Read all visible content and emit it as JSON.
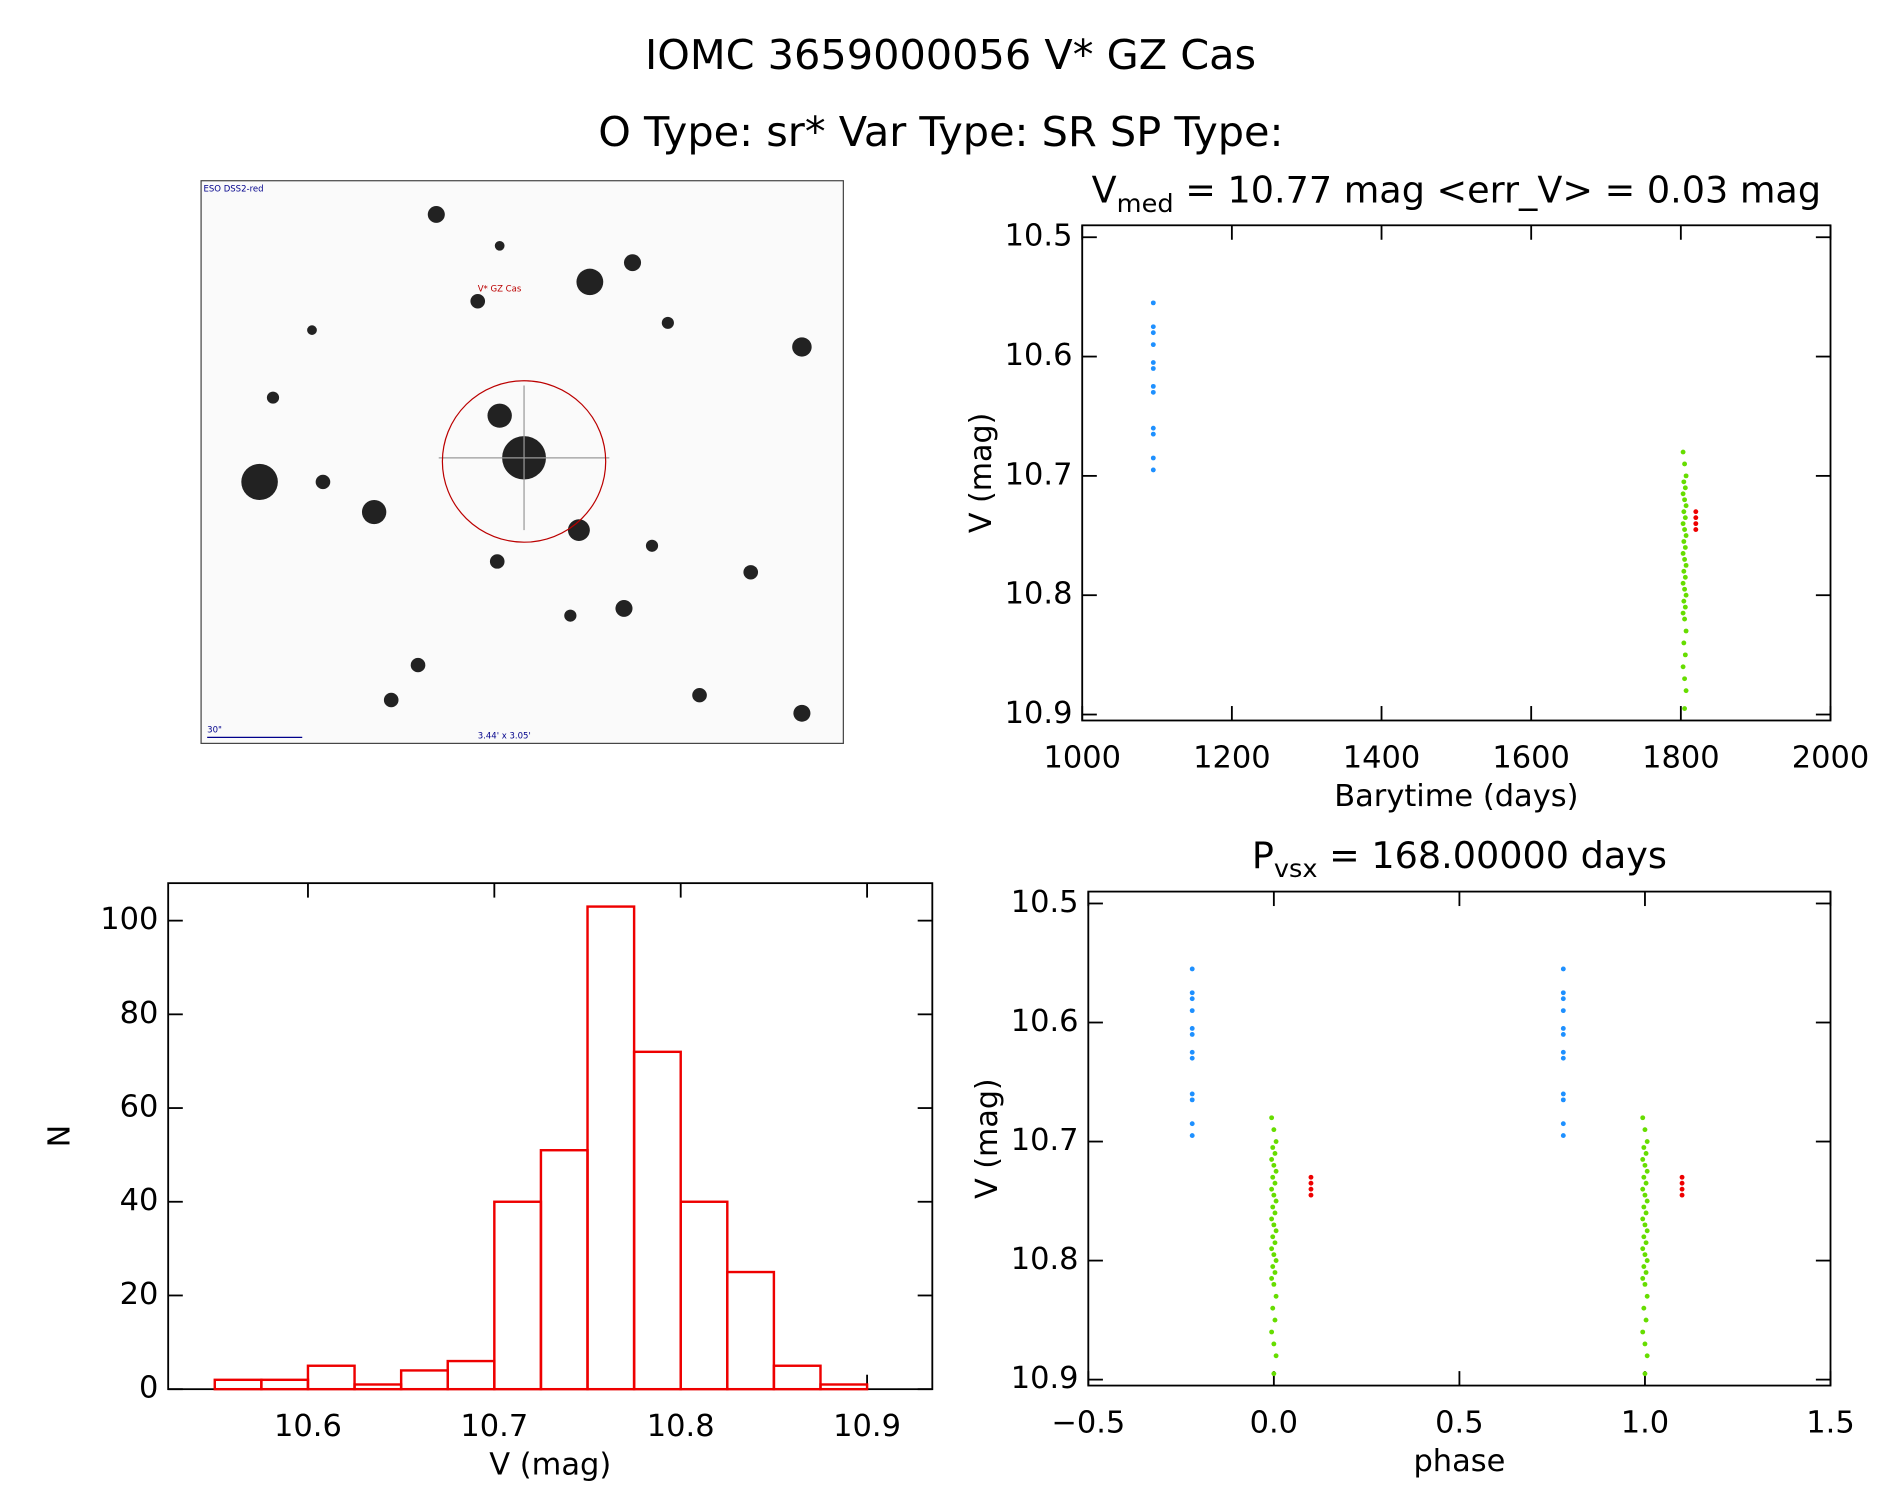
{
  "header": {
    "title": "IOMC 3659000056   V* GZ Cas",
    "subtitle": "O Type: sr*  Var Type: SR  SP Type:"
  },
  "image": {
    "survey": "ESO DSS2-red",
    "target": "V* GZ Cas",
    "scale": "30\"",
    "fov": "3.44' x 3.05'"
  },
  "chart_data": [
    {
      "type": "scatter",
      "title_parts": [
        "V",
        "med",
        " = 10.77 mag <err_V> = 0.03 mag"
      ],
      "xlabel": "Barytime (days)",
      "ylabel": "V (mag)",
      "xlim": [
        1000,
        2000
      ],
      "xticks": [
        1000,
        1200,
        1400,
        1600,
        1800,
        2000
      ],
      "ylim": [
        10.905,
        10.49
      ],
      "yticks": [
        10.5,
        10.6,
        10.7,
        10.8,
        10.9
      ],
      "series": [
        {
          "color": "#1e90ff",
          "x": [
            1095,
            1095,
            1095,
            1095,
            1095,
            1095,
            1095,
            1095,
            1095,
            1095,
            1095,
            1095
          ],
          "y": [
            10.555,
            10.575,
            10.58,
            10.59,
            10.605,
            10.61,
            10.625,
            10.63,
            10.66,
            10.665,
            10.685,
            10.695
          ]
        },
        {
          "color": "#66dd00",
          "x": [
            1803,
            1805,
            1807,
            1804,
            1806,
            1803,
            1805,
            1807,
            1804,
            1806,
            1803,
            1805,
            1807,
            1804,
            1806,
            1803,
            1805,
            1807,
            1804,
            1806,
            1803,
            1805,
            1807,
            1804,
            1806,
            1803,
            1805,
            1807,
            1804,
            1806,
            1803,
            1805,
            1807,
            1805
          ],
          "y": [
            10.68,
            10.69,
            10.7,
            10.705,
            10.71,
            10.715,
            10.72,
            10.725,
            10.73,
            10.735,
            10.74,
            10.745,
            10.75,
            10.755,
            10.76,
            10.765,
            10.77,
            10.775,
            10.78,
            10.785,
            10.79,
            10.795,
            10.8,
            10.805,
            10.81,
            10.815,
            10.82,
            10.83,
            10.84,
            10.85,
            10.86,
            10.87,
            10.88,
            10.895
          ]
        },
        {
          "color": "#ee0000",
          "x": [
            1820,
            1820,
            1820,
            1820
          ],
          "y": [
            10.73,
            10.735,
            10.74,
            10.745
          ]
        }
      ]
    },
    {
      "type": "scatter",
      "title_parts": [
        "P",
        "vsx",
        " = 168.00000 days"
      ],
      "xlabel": "phase",
      "ylabel": "V (mag)",
      "xlim": [
        -0.5,
        1.5
      ],
      "xticks": [
        {
          "value": -0.5,
          "label": "−0.5"
        },
        {
          "value": 0,
          "label": "0.0"
        },
        0.5,
        {
          "value": 1,
          "label": "1.0"
        },
        1.5
      ],
      "ylim": [
        10.905,
        10.49
      ],
      "yticks": [
        10.5,
        10.6,
        10.7,
        10.8,
        10.9
      ],
      "series": [
        {
          "color": "#1e90ff",
          "x": [
            -0.22,
            -0.22,
            -0.22,
            -0.22,
            -0.22,
            -0.22,
            -0.22,
            -0.22,
            -0.22,
            -0.22,
            -0.22,
            -0.22,
            0.78,
            0.78,
            0.78,
            0.78,
            0.78,
            0.78,
            0.78,
            0.78,
            0.78,
            0.78,
            0.78,
            0.78
          ],
          "y": [
            10.555,
            10.575,
            10.58,
            10.59,
            10.605,
            10.61,
            10.625,
            10.63,
            10.66,
            10.665,
            10.685,
            10.695,
            10.555,
            10.575,
            10.58,
            10.59,
            10.605,
            10.61,
            10.625,
            10.63,
            10.66,
            10.665,
            10.685,
            10.695
          ]
        },
        {
          "color": "#66dd00",
          "x": [
            -0.006,
            0,
            0.006,
            -0.003,
            0.003,
            -0.006,
            0,
            0.006,
            -0.003,
            0.003,
            -0.006,
            0,
            0.006,
            -0.003,
            0.003,
            -0.006,
            0,
            0.006,
            -0.003,
            0.003,
            -0.006,
            0,
            0.006,
            -0.003,
            0.003,
            -0.006,
            0,
            0.006,
            -0.003,
            0.003,
            -0.006,
            0,
            0.006,
            0,
            0.994,
            1,
            1.006,
            0.997,
            1.003,
            0.994,
            1,
            1.006,
            0.997,
            1.003,
            0.994,
            1,
            1.006,
            0.997,
            1.003,
            0.994,
            1,
            1.006,
            0.997,
            1.003,
            0.994,
            1,
            1.006,
            0.997,
            1.003,
            0.994,
            1,
            1.006,
            0.997,
            1.003,
            0.994,
            1,
            1.006,
            1
          ],
          "y": [
            10.68,
            10.69,
            10.7,
            10.705,
            10.71,
            10.715,
            10.72,
            10.725,
            10.73,
            10.735,
            10.74,
            10.745,
            10.75,
            10.755,
            10.76,
            10.765,
            10.77,
            10.775,
            10.78,
            10.785,
            10.79,
            10.795,
            10.8,
            10.805,
            10.81,
            10.815,
            10.82,
            10.83,
            10.84,
            10.85,
            10.86,
            10.87,
            10.88,
            10.895,
            10.68,
            10.69,
            10.7,
            10.705,
            10.71,
            10.715,
            10.72,
            10.725,
            10.73,
            10.735,
            10.74,
            10.745,
            10.75,
            10.755,
            10.76,
            10.765,
            10.77,
            10.775,
            10.78,
            10.785,
            10.79,
            10.795,
            10.8,
            10.805,
            10.81,
            10.815,
            10.82,
            10.83,
            10.84,
            10.85,
            10.86,
            10.87,
            10.88,
            10.895
          ]
        },
        {
          "color": "#ee0000",
          "x": [
            0.1,
            0.1,
            0.1,
            0.1,
            1.1,
            1.1,
            1.1,
            1.1
          ],
          "y": [
            10.73,
            10.735,
            10.74,
            10.745,
            10.73,
            10.735,
            10.74,
            10.745
          ]
        }
      ]
    },
    {
      "type": "histogram",
      "xlabel": "V (mag)",
      "ylabel": "N",
      "color": "#ee0000",
      "bins": [
        10.55,
        10.575,
        10.6,
        10.625,
        10.65,
        10.675,
        10.7,
        10.725,
        10.75,
        10.775,
        10.8,
        10.825,
        10.85,
        10.875,
        10.9
      ],
      "values": [
        2,
        2,
        5,
        1,
        4,
        6,
        40,
        51,
        103,
        72,
        40,
        25,
        5,
        1
      ],
      "xlim": [
        10.525,
        10.935
      ],
      "xticks": [
        10.6,
        10.7,
        10.8,
        10.9
      ],
      "ylim": [
        0,
        108
      ],
      "yticks": [
        0,
        20,
        40,
        60,
        80,
        100
      ]
    }
  ]
}
